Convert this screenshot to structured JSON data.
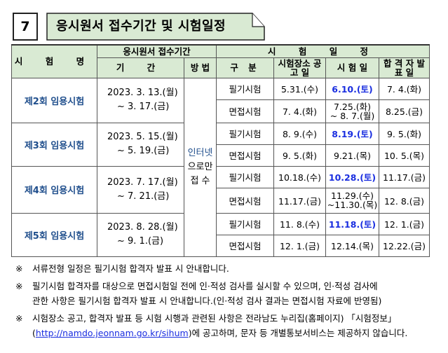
{
  "section": {
    "number": "7",
    "title": "응시원서 접수기간 및 시험일정"
  },
  "table": {
    "headers": {
      "exam_name": "시 험 명",
      "application": "응시원서 접수기간",
      "schedule": "시 험 일 정",
      "period": "기 간",
      "method": "방 법",
      "category": "구 분",
      "venue_notice": "시험장소 공 고 일",
      "exam_date": "시 험 일",
      "result_date": "합 격 자 발 표 일"
    },
    "method": [
      "인터넷",
      "으로만",
      "접 수"
    ],
    "exams": [
      {
        "name": "제2회 임용시험",
        "period_start": "2023. 3. 13.(월)",
        "period_end": "~ 3. 17.(금)",
        "rows": [
          {
            "type": "필기시험",
            "notice": "5.31.(수)",
            "date": "6.10.(토)",
            "result": "7. 4.(화)"
          },
          {
            "type": "면접시험",
            "notice": "7. 4.(화)",
            "date": "7.25.(화)",
            "date2": "~ 8. 7.(월)",
            "result": "8.25.(금)"
          }
        ]
      },
      {
        "name": "제3회 임용시험",
        "period_start": "2023. 5. 15.(월)",
        "period_end": "~ 5. 19.(금)",
        "rows": [
          {
            "type": "필기시험",
            "notice": "8. 9.(수)",
            "date": "8.19.(토)",
            "result": "9. 5.(화)"
          },
          {
            "type": "면접시험",
            "notice": "9. 5.(화)",
            "date": "9.21.(목)",
            "result": "10. 5.(목)"
          }
        ]
      },
      {
        "name": "제4회 임용시험",
        "period_start": "2023. 7. 17.(월)",
        "period_end": "~ 7. 21.(금)",
        "rows": [
          {
            "type": "필기시험",
            "notice": "10.18.(수)",
            "date": "10.28.(토)",
            "result": "11.17.(금)"
          },
          {
            "type": "면접시험",
            "notice": "11.17.(금)",
            "date": "11.29.(수)",
            "date2": "~11.30.(목)",
            "result": "12. 8.(금)"
          }
        ]
      },
      {
        "name": "제5회 임용시험",
        "period_start": "2023. 8. 28.(월)",
        "period_end": "~ 9. 1.(금)",
        "rows": [
          {
            "type": "필기시험",
            "notice": "11. 8.(수)",
            "date": "11.18.(토)",
            "result": "12. 1.(금)"
          },
          {
            "type": "면접시험",
            "notice": "12. 1.(금)",
            "date": "12.14.(목)",
            "result": "12.22.(금)"
          }
        ]
      }
    ]
  },
  "notes": {
    "mark": "※",
    "n1": "서류전형 일정은 필기시험 합격자 발표 시 안내합니다.",
    "n2a": "필기시험 합격자를 대상으로 면접시험일 전에 인·적성 검사를 실시할 수 있으며, 인·적성 검사에",
    "n2b": "관한 사항은 필기시험 합격자 발표 시 안내합니다.(인·적성 검사 결과는 면접시험 자료에 반영됨)",
    "n3a": "시험장소 공고, 합격자 발표 등 시험 시행과 관련된 사항은 전라남도 누리집(홈페이지) 「시험정보」",
    "n3_open": "(",
    "n3_link": "http://namdo.jeonnam.go.kr/sihum",
    "n3b": ")에 공고하며, 문자 등 개별통보서비스는 제공하지 않습니다."
  },
  "colors": {
    "title_bg": "#d9ead3",
    "header_bg": "#d9ead3",
    "exam_name": "#1f4e8c",
    "highlight": "#1a2ee0"
  }
}
